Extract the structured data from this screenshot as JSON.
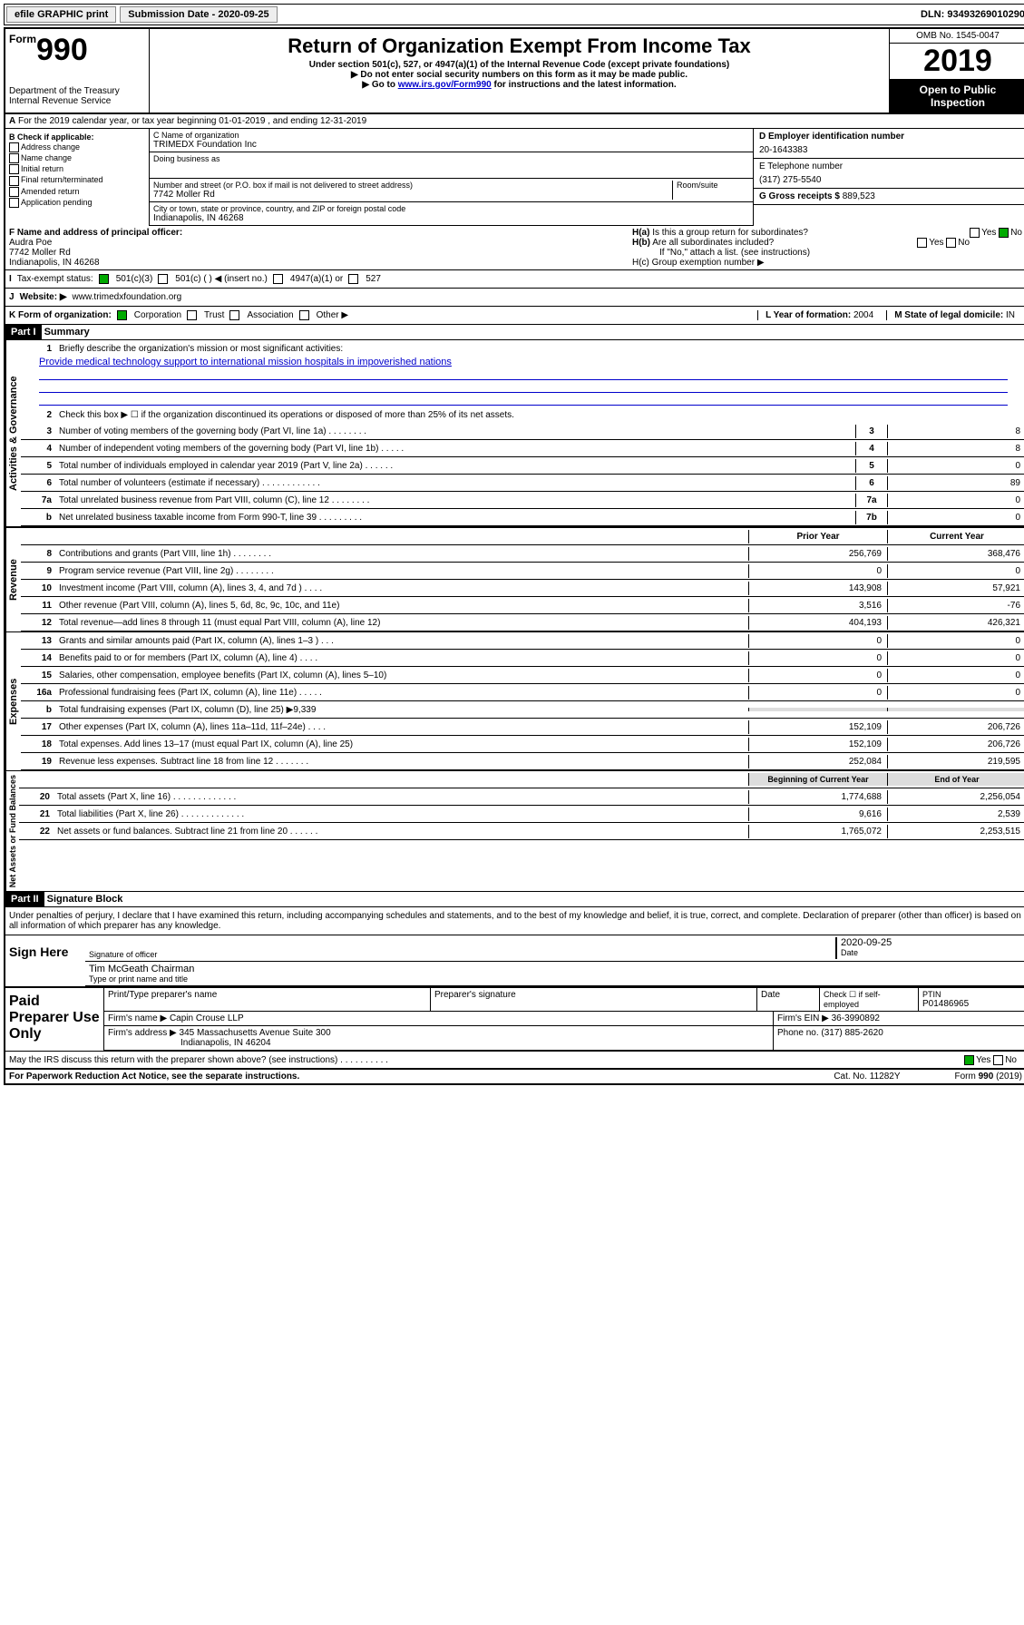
{
  "topbar": {
    "efile": "efile GRAPHIC print",
    "subdate_lbl": "Submission Date - ",
    "subdate": "2020-09-25",
    "dln_lbl": "DLN: ",
    "dln": "93493269010290"
  },
  "header": {
    "form_prefix": "Form",
    "form_num": "990",
    "dept": "Department of the Treasury\nInternal Revenue Service",
    "title": "Return of Organization Exempt From Income Tax",
    "sub1": "Under section 501(c), 527, or 4947(a)(1) of the Internal Revenue Code (except private foundations)",
    "sub2": "▶ Do not enter social security numbers on this form as it may be made public.",
    "sub3_a": "▶ Go to ",
    "sub3_link": "www.irs.gov/Form990",
    "sub3_b": " for instructions and the latest information.",
    "omb": "OMB No. 1545-0047",
    "year": "2019",
    "inspect": "Open to Public Inspection"
  },
  "rowA": {
    "text": "For the 2019 calendar year, or tax year beginning 01-01-2019   , and ending 12-31-2019",
    "prefix": "A"
  },
  "colB": {
    "lbl": "B Check if applicable:",
    "items": [
      "Address change",
      "Name change",
      "Initial return",
      "Final return/terminated",
      "Amended return",
      "Application pending"
    ]
  },
  "boxC": {
    "lbl": "C Name of organization",
    "org": "TRIMEDX Foundation Inc",
    "dba_lbl": "Doing business as",
    "dba": "",
    "addr_lbl": "Number and street (or P.O. box if mail is not delivered to street address)",
    "room_lbl": "Room/suite",
    "addr": "7742 Moller Rd",
    "city_lbl": "City or town, state or province, country, and ZIP or foreign postal code",
    "city": "Indianapolis, IN  46268"
  },
  "colD": {
    "lbl": "D Employer identification number",
    "ein": "20-1643383",
    "tel_lbl": "E Telephone number",
    "tel": "(317) 275-5540",
    "gross_lbl": "G Gross receipts $ ",
    "gross": "889,523"
  },
  "rowF": {
    "lbl": "F  Name and address of principal officer:",
    "name": "Audra Poe",
    "a1": "7742 Moller Rd",
    "a2": "Indianapolis, IN  46268"
  },
  "rowH": {
    "ha": "H(a)  Is this a group return for subordinates?",
    "hb": "H(b)  Are all subordinates included?",
    "hnote": "If \"No,\" attach a list. (see instructions)",
    "hc": "H(c)  Group exemption number ▶",
    "yes": "Yes",
    "no": "No"
  },
  "rowI": {
    "lbl": "Tax-exempt status:",
    "o1": "501(c)(3)",
    "o2": "501(c) (   ) ◀ (insert no.)",
    "o3": "4947(a)(1) or",
    "o4": "527"
  },
  "rowJ": {
    "lbl": "J",
    "web_lbl": "Website: ▶",
    "web": "www.trimedxfoundation.org"
  },
  "rowK": {
    "lbl": "K Form of organization:",
    "c": "Corporation",
    "t": "Trust",
    "a": "Association",
    "o": "Other ▶",
    "l_lbl": "L Year of formation: ",
    "l": "2004",
    "m_lbl": "M State of legal domicile: ",
    "m": "IN"
  },
  "part1": {
    "hdr": "Part I",
    "title": "Summary"
  },
  "summary": {
    "sec1": "Activities & Governance",
    "sec2": "Revenue",
    "sec3": "Expenses",
    "sec4": "Net Assets or Fund Balances",
    "q1": "Briefly describe the organization's mission or most significant activities:",
    "a1": "Provide medical technology support to international mission hospitals in impoverished nations",
    "q2": "Check this box ▶ ☐  if the organization discontinued its operations or disposed of more than 25% of its net assets.",
    "lines": [
      {
        "n": "3",
        "d": "Number of voting members of the governing body (Part VI, line 1a)   .   .   .   .   .   .   .   .",
        "l": "3",
        "v": "8"
      },
      {
        "n": "4",
        "d": "Number of independent voting members of the governing body (Part VI, line 1b)   .   .   .   .   .",
        "l": "4",
        "v": "8"
      },
      {
        "n": "5",
        "d": "Total number of individuals employed in calendar year 2019 (Part V, line 2a)   .   .   .   .   .   .",
        "l": "5",
        "v": "0"
      },
      {
        "n": "6",
        "d": "Total number of volunteers (estimate if necessary)   .   .   .   .   .   .   .   .   .   .   .   .",
        "l": "6",
        "v": "89"
      },
      {
        "n": "7a",
        "d": "Total unrelated business revenue from Part VIII, column (C), line 12   .   .   .   .   .   .   .   .",
        "l": "7a",
        "v": "0"
      },
      {
        "n": "b",
        "d": "Net unrelated business taxable income from Form 990-T, line 39   .   .   .   .   .   .   .   .   .",
        "l": "7b",
        "v": "0"
      }
    ],
    "yrhdr": {
      "p": "Prior Year",
      "c": "Current Year"
    },
    "rev": [
      {
        "n": "8",
        "d": "Contributions and grants (Part VIII, line 1h)   .   .   .   .   .   .   .   .",
        "p": "256,769",
        "c": "368,476"
      },
      {
        "n": "9",
        "d": "Program service revenue (Part VIII, line 2g)   .   .   .   .   .   .   .   .",
        "p": "0",
        "c": "0"
      },
      {
        "n": "10",
        "d": "Investment income (Part VIII, column (A), lines 3, 4, and 7d )   .   .   .   .",
        "p": "143,908",
        "c": "57,921"
      },
      {
        "n": "11",
        "d": "Other revenue (Part VIII, column (A), lines 5, 6d, 8c, 9c, 10c, and 11e)",
        "p": "3,516",
        "c": "-76"
      },
      {
        "n": "12",
        "d": "Total revenue—add lines 8 through 11 (must equal Part VIII, column (A), line 12)",
        "p": "404,193",
        "c": "426,321"
      }
    ],
    "exp": [
      {
        "n": "13",
        "d": "Grants and similar amounts paid (Part IX, column (A), lines 1–3 )   .   .   .",
        "p": "0",
        "c": "0"
      },
      {
        "n": "14",
        "d": "Benefits paid to or for members (Part IX, column (A), line 4)   .   .   .   .",
        "p": "0",
        "c": "0"
      },
      {
        "n": "15",
        "d": "Salaries, other compensation, employee benefits (Part IX, column (A), lines 5–10)",
        "p": "0",
        "c": "0"
      },
      {
        "n": "16a",
        "d": "Professional fundraising fees (Part IX, column (A), line 11e)   .   .   .   .   .",
        "p": "0",
        "c": "0"
      },
      {
        "n": "b",
        "d": "Total fundraising expenses (Part IX, column (D), line 25) ▶9,339",
        "p": "",
        "c": "",
        "shade": true
      },
      {
        "n": "17",
        "d": "Other expenses (Part IX, column (A), lines 11a–11d, 11f–24e)   .   .   .   .",
        "p": "152,109",
        "c": "206,726"
      },
      {
        "n": "18",
        "d": "Total expenses. Add lines 13–17 (must equal Part IX, column (A), line 25)",
        "p": "152,109",
        "c": "206,726"
      },
      {
        "n": "19",
        "d": "Revenue less expenses. Subtract line 18 from line 12   .   .   .   .   .   .   .",
        "p": "252,084",
        "c": "219,595"
      }
    ],
    "nethdr": {
      "p": "Beginning of Current Year",
      "c": "End of Year"
    },
    "net": [
      {
        "n": "20",
        "d": "Total assets (Part X, line 16)   .   .   .   .   .   .   .   .   .   .   .   .   .",
        "p": "1,774,688",
        "c": "2,256,054"
      },
      {
        "n": "21",
        "d": "Total liabilities (Part X, line 26)   .   .   .   .   .   .   .   .   .   .   .   .   .",
        "p": "9,616",
        "c": "2,539"
      },
      {
        "n": "22",
        "d": "Net assets or fund balances. Subtract line 21 from line 20   .   .   .   .   .   .",
        "p": "1,765,072",
        "c": "2,253,515"
      }
    ]
  },
  "part2": {
    "hdr": "Part II",
    "title": "Signature Block",
    "decl": "Under penalties of perjury, I declare that I have examined this return, including accompanying schedules and statements, and to the best of my knowledge and belief, it is true, correct, and complete. Declaration of preparer (other than officer) is based on all information of which preparer has any knowledge."
  },
  "sign": {
    "here": "Sign Here",
    "sig_lbl": "Signature of officer",
    "date_lbl": "Date",
    "date": "2020-09-25",
    "name": "Tim McGeath  Chairman",
    "name_lbl": "Type or print name and title"
  },
  "paid": {
    "lbl": "Paid Preparer Use Only",
    "h1": "Print/Type preparer's name",
    "h2": "Preparer's signature",
    "h3": "Date",
    "h4": "Check ☐ if self-employed",
    "h5": "PTIN",
    "ptin": "P01486965",
    "firm_lbl": "Firm's name    ▶ ",
    "firm": "Capin Crouse LLP",
    "ein_lbl": "Firm's EIN ▶ ",
    "ein": "36-3990892",
    "addr_lbl": "Firm's address ▶ ",
    "addr1": "345 Massachusetts Avenue Suite 300",
    "addr2": "Indianapolis, IN  46204",
    "ph_lbl": "Phone no. ",
    "ph": "(317) 885-2620"
  },
  "discuss": {
    "q": "May the IRS discuss this return with the preparer shown above? (see instructions)   .   .   .   .   .   .   .   .   .   .",
    "yes": "Yes",
    "no": "No"
  },
  "footer": {
    "pra": "For Paperwork Reduction Act Notice, see the separate instructions.",
    "cat": "Cat. No. 11282Y",
    "form": "Form 990 (2019)"
  }
}
